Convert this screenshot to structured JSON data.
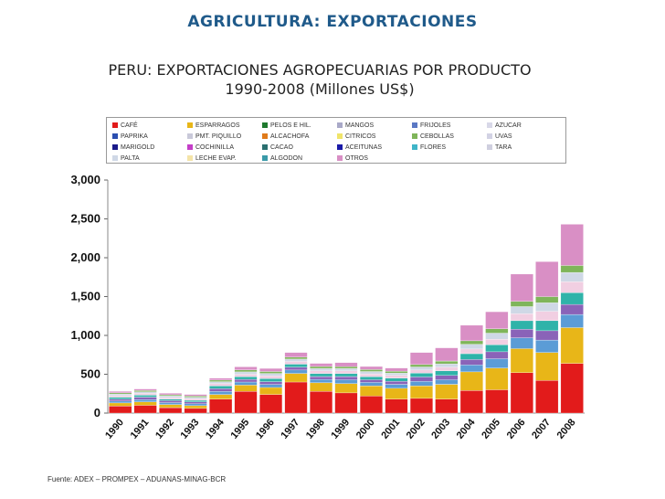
{
  "header": {
    "title": "AGRICULTURA: EXPORTACIONES"
  },
  "source": "Fuente: ADEX – PROMPEX – ADUANAS-MINAG-BCR",
  "colors": {
    "header": "#1f5a8a",
    "segments": [
      "#e21b1b",
      "#e8b618",
      "#5b9cd6",
      "#8a63b8",
      "#2fb3a9",
      "#f1cfe2",
      "#cfd8e6",
      "#7fb55a",
      "#d98fc5"
    ]
  },
  "chart_data": {
    "type": "bar",
    "stacked": true,
    "title": "PERU: EXPORTACIONES AGROPECUARIAS POR PRODUCTO",
    "subtitle": "1990-2008 (Millones US$)",
    "xlabel": "",
    "ylabel": "",
    "ylim": [
      0,
      3000
    ],
    "yticks": [
      "0",
      "500",
      "1,000",
      "1,500",
      "2,000",
      "2,500",
      "3,000"
    ],
    "grid": false,
    "legend_position": "top",
    "legend": [
      {
        "label": "CAFÉ",
        "color": "#e21b1b"
      },
      {
        "label": "ESPARRAGOS",
        "color": "#e8b618"
      },
      {
        "label": "PELOS E HIL.",
        "color": "#1f7a2e"
      },
      {
        "label": "MANGOS",
        "color": "#a9a9c8"
      },
      {
        "label": "FRIJOLES",
        "color": "#5b78c4"
      },
      {
        "label": "AZUCAR",
        "color": "#d8d8e8"
      },
      {
        "label": "PAPRIKA",
        "color": "#2b4fb0"
      },
      {
        "label": "PMT. PIQUILLO",
        "color": "#c9c9d9"
      },
      {
        "label": "ALCACHOFA",
        "color": "#e07b1b"
      },
      {
        "label": "CITRICOS",
        "color": "#f0e46a"
      },
      {
        "label": "CEBOLLAS",
        "color": "#7fb55a"
      },
      {
        "label": "UVAS",
        "color": "#d2d2e4"
      },
      {
        "label": "MARIGOLD",
        "color": "#1a1a8a"
      },
      {
        "label": "COCHINILLA",
        "color": "#c43ec8"
      },
      {
        "label": "CACAO",
        "color": "#2a6f6f"
      },
      {
        "label": "ACEITUNAS",
        "color": "#1a1aa8"
      },
      {
        "label": "FLORES",
        "color": "#3fb5c8"
      },
      {
        "label": "TARA",
        "color": "#cfcfdf"
      },
      {
        "label": "PALTA",
        "color": "#cfd8e6"
      },
      {
        "label": "LECHE EVAP.",
        "color": "#f4e4a8"
      },
      {
        "label": "ALGODON",
        "color": "#3a9aa8"
      },
      {
        "label": "OTROS",
        "color": "#d98fc5"
      }
    ],
    "categories": [
      "1990",
      "1991",
      "1992",
      "1993",
      "1994",
      "1995",
      "1996",
      "1997",
      "1998",
      "1999",
      "2000",
      "2001",
      "2002",
      "2003",
      "2004",
      "2005",
      "2006",
      "2007",
      "2008"
    ],
    "series": [
      {
        "name": "CAFÉ",
        "values": [
          90,
          100,
          70,
          60,
          180,
          280,
          240,
          400,
          280,
          260,
          220,
          180,
          190,
          180,
          290,
          300,
          520,
          420,
          640
        ]
      },
      {
        "name": "ESPARRAGOS",
        "values": [
          40,
          45,
          40,
          35,
          60,
          80,
          90,
          110,
          110,
          120,
          130,
          140,
          160,
          190,
          240,
          280,
          310,
          360,
          460
        ]
      },
      {
        "name": "PAPRIKA",
        "values": [
          25,
          30,
          25,
          25,
          40,
          40,
          40,
          45,
          45,
          50,
          45,
          50,
          60,
          60,
          90,
          120,
          140,
          160,
          170
        ]
      },
      {
        "name": "MANGOS",
        "values": [
          25,
          30,
          25,
          25,
          35,
          35,
          35,
          35,
          35,
          40,
          35,
          40,
          55,
          55,
          70,
          90,
          110,
          120,
          130
        ]
      },
      {
        "name": "FLORES",
        "values": [
          25,
          25,
          20,
          20,
          35,
          35,
          40,
          40,
          40,
          40,
          40,
          40,
          50,
          60,
          75,
          90,
          110,
          130,
          150
        ]
      },
      {
        "name": "AZUCAR",
        "values": [
          20,
          25,
          20,
          20,
          30,
          30,
          35,
          35,
          35,
          35,
          35,
          35,
          40,
          45,
          60,
          70,
          90,
          120,
          140
        ]
      },
      {
        "name": "PALTA",
        "values": [
          20,
          20,
          20,
          20,
          25,
          30,
          30,
          30,
          30,
          30,
          30,
          30,
          40,
          45,
          60,
          80,
          90,
          110,
          120
        ]
      },
      {
        "name": "CEBOLLAS",
        "values": [
          15,
          15,
          15,
          15,
          20,
          25,
          25,
          25,
          25,
          25,
          25,
          25,
          30,
          35,
          45,
          55,
          70,
          80,
          90
        ]
      },
      {
        "name": "OTROS",
        "values": [
          20,
          20,
          20,
          20,
          25,
          40,
          40,
          60,
          40,
          50,
          40,
          40,
          155,
          170,
          200,
          220,
          350,
          450,
          530
        ]
      }
    ]
  }
}
